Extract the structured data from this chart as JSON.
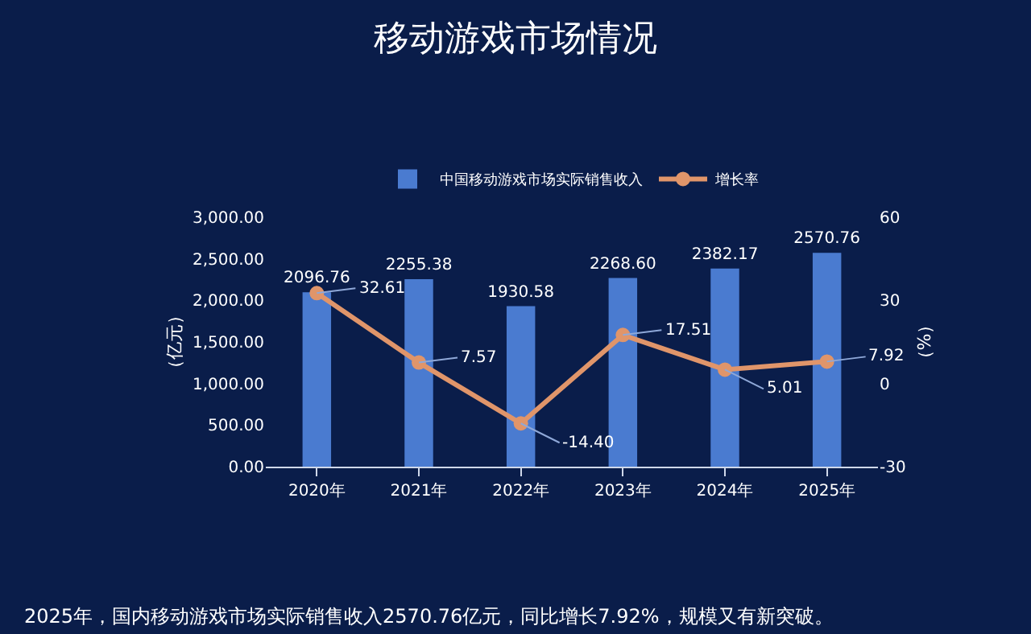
{
  "chart_data": {
    "type": "bar",
    "title": "移动游戏市场情况",
    "categories": [
      "2020年",
      "2021年",
      "2022年",
      "2023年",
      "2024年",
      "2025年"
    ],
    "ylabel": "（亿元）",
    "y2label": "（%）",
    "series": [
      {
        "name": "中国移动游戏市场实际销售收入",
        "color": "#4a7bd0",
        "values": [
          2096.76,
          2255.38,
          1930.58,
          2268.6,
          2382.17,
          2570.76
        ],
        "value_labels": [
          "2096.76",
          "2255.38",
          "1930.58",
          "2268.60",
          "2382.17",
          "2570.76"
        ]
      },
      {
        "name": "增长率",
        "type": "line",
        "axis": "y2",
        "color": "#e0956a",
        "values": [
          32.61,
          7.57,
          -14.4,
          17.51,
          5.01,
          7.92
        ],
        "value_labels": [
          "32.61",
          "7.57",
          "-14.40",
          "17.51",
          "5.01",
          "7.92"
        ]
      }
    ],
    "ylim": [
      0,
      3000
    ],
    "yticks": [
      {
        "value": 0,
        "label": "0.00"
      },
      {
        "value": 500,
        "label": "500.00"
      },
      {
        "value": 1000,
        "label": "1,000.00"
      },
      {
        "value": 1500,
        "label": "1,500.00"
      },
      {
        "value": 2000,
        "label": "2,000.00"
      },
      {
        "value": 2500,
        "label": "2,500.00"
      },
      {
        "value": 3000,
        "label": "3,000.00"
      }
    ],
    "y2lim": [
      -30,
      60
    ],
    "y2ticks": [
      -30,
      0,
      30,
      60
    ],
    "grid": false,
    "legend": "top",
    "marker": "circle",
    "line_style": "solid",
    "annotations": [
      "2025年，国内移动游戏市场实际销售收入2570.76亿元，同比增长7.92%，规模又有新突破。"
    ]
  }
}
